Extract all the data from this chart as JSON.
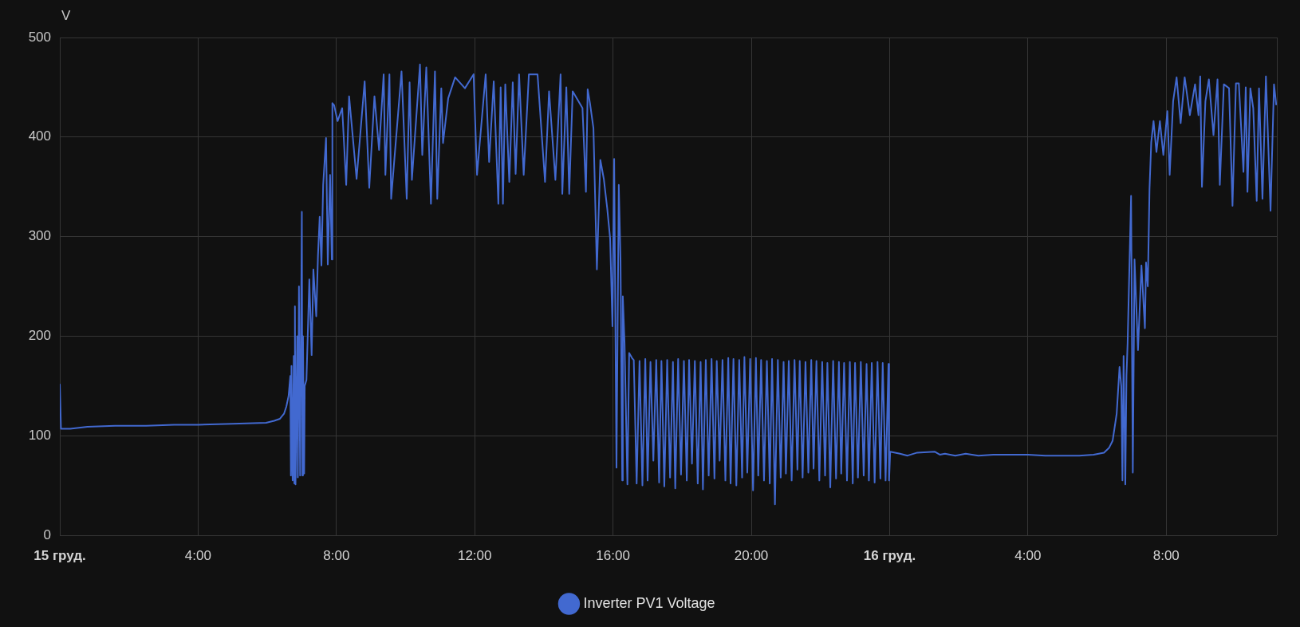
{
  "chart_data": {
    "type": "line",
    "ylabel": "V",
    "xlim": [
      "--12-15T00:00",
      "--12-16T11:12"
    ],
    "ylim": [
      0,
      500
    ],
    "xticks": [
      {
        "value": "--12-15T00:00",
        "label": "15 груд."
      },
      {
        "value": "--12-15T04:00",
        "label": "4:00"
      },
      {
        "value": "--12-15T08:00",
        "label": "8:00"
      },
      {
        "value": "--12-15T12:00",
        "label": "12:00"
      },
      {
        "value": "--12-15T16:00",
        "label": "16:00"
      },
      {
        "value": "--12-15T20:00",
        "label": "20:00"
      },
      {
        "value": "--12-16T00:00",
        "label": "16 груд."
      },
      {
        "value": "--12-16T04:00",
        "label": "4:00"
      },
      {
        "value": "--12-16T08:00",
        "label": "8:00"
      }
    ],
    "yticks": [
      0,
      100,
      200,
      300,
      400,
      500
    ],
    "grid": true,
    "legend": "bottom",
    "series": [
      {
        "name": "Inverter PV1 Voltage",
        "color": "#4269d0",
        "x": [
          "--12-15T00:00",
          "--12-15T00:02",
          "--12-15T00:18",
          "--12-15T00:48",
          "--12-15T01:36",
          "--12-15T02:30",
          "--12-15T03:18",
          "--12-15T04:00",
          "--12-15T05:00",
          "--12-15T05:58",
          "--12-15T06:12",
          "--12-15T06:22",
          "--12-15T06:29",
          "--12-15T06:33",
          "--12-15T06:37",
          "--12-15T06:40",
          "--12-15T06:41",
          "--12-15T06:42",
          "--12-15T06:44",
          "--12-15T06:46",
          "--12-15T06:47",
          "--12-15T06:48",
          "--12-15T06:49",
          "--12-15T06:52",
          "--12-15T06:53",
          "--12-15T06:55",
          "--12-15T06:57",
          "--12-15T07:00",
          "--12-15T07:01",
          "--12-15T07:02",
          "--12-15T07:04",
          "--12-15T07:05",
          "--12-15T07:08",
          "--12-15T07:13",
          "--12-15T07:17",
          "--12-15T07:20",
          "--12-15T07:25",
          "--12-15T07:28",
          "--12-15T07:31",
          "--12-15T07:34",
          "--12-15T07:37",
          "--12-15T07:42",
          "--12-15T07:45",
          "--12-15T07:49",
          "--12-15T07:52",
          "--12-15T07:53",
          "--12-15T07:56",
          "--12-15T08:02",
          "--12-15T08:10",
          "--12-15T08:17",
          "--12-15T08:22",
          "--12-15T08:35",
          "--12-15T08:49",
          "--12-15T08:57",
          "--12-15T09:06",
          "--12-15T09:14",
          "--12-15T09:22",
          "--12-15T09:25",
          "--12-15T09:32",
          "--12-15T09:35",
          "--12-15T09:53",
          "--12-15T10:02",
          "--12-15T10:07",
          "--12-15T10:11",
          "--12-15T10:25",
          "--12-15T10:29",
          "--12-15T10:36",
          "--12-15T10:44",
          "--12-15T10:51",
          "--12-15T10:55",
          "--12-15T11:02",
          "--12-15T11:05",
          "--12-15T11:14",
          "--12-15T11:26",
          "--12-15T11:43",
          "--12-15T11:58",
          "--12-15T12:04",
          "--12-15T12:19",
          "--12-15T12:25",
          "--12-15T12:33",
          "--12-15T12:41",
          "--12-15T12:45",
          "--12-15T12:49",
          "--12-15T12:53",
          "--12-15T13:00",
          "--12-15T13:06",
          "--12-15T13:11",
          "--12-15T13:17",
          "--12-15T13:25",
          "--12-15T13:34",
          "--12-15T13:49",
          "--12-15T14:02",
          "--12-15T14:09",
          "--12-15T14:20",
          "--12-15T14:29",
          "--12-15T14:32",
          "--12-15T14:39",
          "--12-15T14:44",
          "--12-15T14:50",
          "--12-15T15:07",
          "--12-15T15:13",
          "--12-15T15:16",
          "--12-15T15:20",
          "--12-15T15:26",
          "--12-15T15:32",
          "--12-15T15:38",
          "--12-15T15:44",
          "--12-15T15:50",
          "--12-15T15:55",
          "--12-15T15:59",
          "--12-15T16:02",
          "--12-15T16:06",
          "--12-15T16:10",
          "--12-15T16:13",
          "--12-15T16:16",
          "--12-15T16:17",
          "--12-15T16:20",
          "--12-15T16:25",
          "--12-15T16:28",
          "--12-15T16:33",
          "--12-15T16:36",
          "--12-15T16:41",
          "--12-15T16:46",
          "--12-15T16:51",
          "--12-15T16:56",
          "--12-15T17:00",
          "--12-15T17:05",
          "--12-15T17:10",
          "--12-15T17:15",
          "--12-15T17:20",
          "--12-15T17:24",
          "--12-15T17:29",
          "--12-15T17:34",
          "--12-15T17:39",
          "--12-15T17:44",
          "--12-15T17:48",
          "--12-15T17:53",
          "--12-15T17:58",
          "--12-15T18:03",
          "--12-15T18:08",
          "--12-15T18:12",
          "--12-15T18:17",
          "--12-15T18:22",
          "--12-15T18:27",
          "--12-15T18:32",
          "--12-15T18:36",
          "--12-15T18:41",
          "--12-15T18:46",
          "--12-15T18:51",
          "--12-15T18:56",
          "--12-15T19:00",
          "--12-15T19:05",
          "--12-15T19:10",
          "--12-15T19:15",
          "--12-15T19:20",
          "--12-15T19:24",
          "--12-15T19:29",
          "--12-15T19:34",
          "--12-15T19:39",
          "--12-15T19:44",
          "--12-15T19:48",
          "--12-15T19:53",
          "--12-15T19:58",
          "--12-15T20:03",
          "--12-15T20:08",
          "--12-15T20:12",
          "--12-15T20:17",
          "--12-15T20:22",
          "--12-15T20:27",
          "--12-15T20:32",
          "--12-15T20:36",
          "--12-15T20:41",
          "--12-15T20:46",
          "--12-15T20:51",
          "--12-15T20:56",
          "--12-15T21:00",
          "--12-15T21:05",
          "--12-15T21:10",
          "--12-15T21:15",
          "--12-15T21:20",
          "--12-15T21:24",
          "--12-15T21:29",
          "--12-15T21:34",
          "--12-15T21:39",
          "--12-15T21:44",
          "--12-15T21:48",
          "--12-15T21:53",
          "--12-15T21:58",
          "--12-15T22:03",
          "--12-15T22:08",
          "--12-15T22:12",
          "--12-15T22:17",
          "--12-15T22:22",
          "--12-15T22:27",
          "--12-15T22:32",
          "--12-15T22:36",
          "--12-15T22:41",
          "--12-15T22:46",
          "--12-15T22:51",
          "--12-15T22:56",
          "--12-15T23:00",
          "--12-15T23:05",
          "--12-15T23:10",
          "--12-15T23:15",
          "--12-15T23:20",
          "--12-15T23:24",
          "--12-15T23:29",
          "--12-15T23:34",
          "--12-15T23:39",
          "--12-15T23:44",
          "--12-15T23:48",
          "--12-15T23:53",
          "--12-15T23:58",
          "--12-15T23:59",
          "--12-16T00:01",
          "--12-16T00:18",
          "--12-16T00:31",
          "--12-16T00:48",
          "--12-16T01:18",
          "--12-16T01:27",
          "--12-16T01:36",
          "--12-16T01:54",
          "--12-16T02:12",
          "--12-16T02:34",
          "--12-16T03:00",
          "--12-16T03:30",
          "--12-16T04:00",
          "--12-16T04:30",
          "--12-16T05:00",
          "--12-16T05:29",
          "--12-16T05:54",
          "--12-16T06:12",
          "--12-16T06:21",
          "--12-16T06:27",
          "--12-16T06:34",
          "--12-16T06:39",
          "--12-16T06:42",
          "--12-16T06:44",
          "--12-16T06:46",
          "--12-16T06:49",
          "--12-16T06:51",
          "--12-16T06:53",
          "--12-16T06:59",
          "--12-16T07:02",
          "--12-16T07:05",
          "--12-16T07:11",
          "--12-16T07:17",
          "--12-16T07:23",
          "--12-16T07:25",
          "--12-16T07:28",
          "--12-16T07:31",
          "--12-16T07:34",
          "--12-16T07:38",
          "--12-16T07:43",
          "--12-16T07:49",
          "--12-16T07:55",
          "--12-16T08:02",
          "--12-16T08:06",
          "--12-16T08:12",
          "--12-16T08:18",
          "--12-16T08:25",
          "--12-16T08:32",
          "--12-16T08:41",
          "--12-16T08:50",
          "--12-16T08:56",
          "--12-16T08:59",
          "--12-16T09:02",
          "--12-16T09:08",
          "--12-16T09:14",
          "--12-16T09:22",
          "--12-16T09:29",
          "--12-16T09:33",
          "--12-16T09:40",
          "--12-16T09:49",
          "--12-16T09:55",
          "--12-16T10:01",
          "--12-16T10:06",
          "--12-16T10:14",
          "--12-16T10:18",
          "--12-16T10:21",
          "--12-16T10:26",
          "--12-16T10:31",
          "--12-16T10:37",
          "--12-16T10:41",
          "--12-16T10:47",
          "--12-16T10:53",
          "--12-16T11:01",
          "--12-16T11:07",
          "--12-16T11:11"
        ],
        "values": [
          152,
          107,
          107,
          109,
          110,
          110,
          111,
          111,
          112,
          113,
          115,
          117,
          122,
          129,
          140,
          160,
          60,
          170,
          55,
          180,
          52,
          230,
          51,
          200,
          58,
          250,
          60,
          325,
          60,
          200,
          62,
          150,
          156,
          257,
          181,
          267,
          220,
          281,
          320,
          271,
          352,
          399,
          272,
          362,
          277,
          434,
          432,
          416,
          429,
          352,
          441,
          358,
          456,
          349,
          441,
          387,
          463,
          362,
          463,
          338,
          466,
          338,
          455,
          357,
          473,
          382,
          470,
          333,
          466,
          338,
          449,
          394,
          439,
          460,
          449,
          463,
          362,
          463,
          375,
          456,
          333,
          450,
          333,
          453,
          355,
          455,
          363,
          463,
          362,
          463,
          463,
          355,
          446,
          357,
          463,
          343,
          450,
          343,
          446,
          429,
          345,
          448,
          434,
          409,
          267,
          377,
          358,
          328,
          298,
          210,
          378,
          68,
          352,
          277,
          55,
          240,
          193,
          51,
          183,
          178,
          176,
          52,
          175,
          50,
          177,
          55,
          174,
          75,
          176,
          53,
          175,
          49,
          176,
          58,
          174,
          47,
          177,
          61,
          175,
          55,
          176,
          72,
          175,
          52,
          174,
          46,
          176,
          60,
          177,
          57,
          175,
          75,
          176,
          55,
          178,
          52,
          177,
          50,
          176,
          58,
          179,
          63,
          177,
          45,
          178,
          60,
          176,
          55,
          175,
          52,
          177,
          31,
          176,
          58,
          174,
          62,
          175,
          55,
          176,
          66,
          175,
          58,
          174,
          63,
          176,
          67,
          175,
          55,
          174,
          60,
          173,
          48,
          175,
          57,
          174,
          62,
          173,
          55,
          174,
          52,
          173,
          58,
          174,
          60,
          172,
          55,
          173,
          53,
          174,
          57,
          173,
          55,
          172,
          55,
          84,
          82,
          80,
          83,
          84,
          81,
          82,
          80,
          82,
          80,
          81,
          81,
          81,
          80,
          80,
          80,
          81,
          83,
          88,
          95,
          122,
          169,
          150,
          55,
          180,
          51,
          160,
          193,
          341,
          63,
          277,
          186,
          271,
          208,
          274,
          250,
          348,
          395,
          416,
          385,
          416,
          382,
          426,
          362,
          436,
          460,
          414,
          460,
          422,
          453,
          422,
          461,
          350,
          436,
          458,
          402,
          458,
          352,
          453,
          449,
          331,
          454,
          454,
          365,
          450,
          345,
          449,
          429,
          336,
          449,
          338,
          461,
          326,
          453,
          432
        ]
      }
    ]
  }
}
